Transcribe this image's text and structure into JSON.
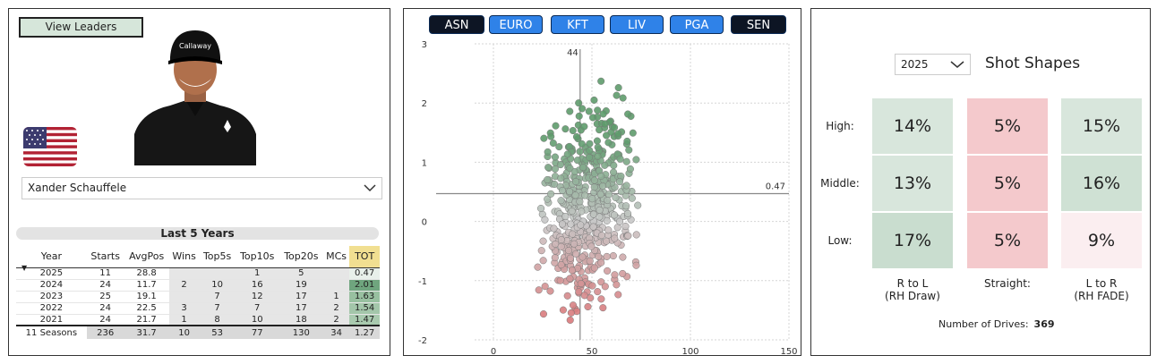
{
  "left": {
    "view_leaders": "View Leaders",
    "player": "Xander Schauffele",
    "section_title": "Last 5 Years",
    "columns": [
      "Year",
      "Starts",
      "AvgPos",
      "Wins",
      "Top5s",
      "Top10s",
      "Top20s",
      "MCs",
      "TOT"
    ],
    "rows": [
      [
        "2025",
        "11",
        "28.8",
        "",
        "",
        "1",
        "5",
        "",
        "0.47"
      ],
      [
        "2024",
        "24",
        "11.7",
        "2",
        "10",
        "16",
        "19",
        "",
        "2.01"
      ],
      [
        "2023",
        "25",
        "19.1",
        "",
        "7",
        "12",
        "17",
        "1",
        "1.63"
      ],
      [
        "2022",
        "24",
        "22.5",
        "3",
        "7",
        "7",
        "17",
        "2",
        "1.54"
      ],
      [
        "2021",
        "24",
        "21.7",
        "1",
        "8",
        "10",
        "18",
        "2",
        "1.47"
      ]
    ],
    "tot_colors": [
      "#e8f0ea",
      "#6fa57e",
      "#98c0a0",
      "#a3c6aa",
      "#a9caaf"
    ],
    "total_row": [
      "11 Seasons",
      "236",
      "31.7",
      "10",
      "53",
      "77",
      "130",
      "34",
      "1.27"
    ]
  },
  "middle": {
    "leagues": [
      {
        "label": "ASN",
        "style": "dark"
      },
      {
        "label": "EURO",
        "style": "blue"
      },
      {
        "label": "KFT",
        "style": "blue"
      },
      {
        "label": "LIV",
        "style": "blue"
      },
      {
        "label": "PGA",
        "style": "blue"
      },
      {
        "label": "SEN",
        "style": "dark"
      }
    ],
    "chart_data": {
      "type": "scatter",
      "title": "",
      "xlabel": "",
      "ylabel": "",
      "xlim": [
        -15,
        150
      ],
      "ylim": [
        -2,
        3
      ],
      "x_ticks": [
        "0",
        "50",
        "100",
        "150"
      ],
      "y_ticks": [
        "3",
        "2",
        "1",
        "0",
        "-1",
        "-2"
      ],
      "vertical_ref": {
        "value": 44,
        "label": "44"
      },
      "horizontal_ref": {
        "value": 0.47,
        "label": "0.47"
      },
      "grid": true,
      "point_color_high": "#5e9b6c",
      "point_color_mid": "#c8c8c8",
      "point_color_low": "#d9797b"
    }
  },
  "right": {
    "year": "2025",
    "title": "Shot Shapes",
    "row_labels": [
      "High:",
      "Middle:",
      "Low:"
    ],
    "col_labels": [
      [
        "R to L",
        "(RH Draw)"
      ],
      [
        "Straight:",
        ""
      ],
      [
        "L to R",
        "(RH FADE)"
      ]
    ],
    "cells": [
      [
        {
          "v": "14%",
          "c": "#d8e6dc"
        },
        {
          "v": "5%",
          "c": "#f4c9cc"
        },
        {
          "v": "15%",
          "c": "#d8e6dc"
        }
      ],
      [
        {
          "v": "13%",
          "c": "#d8e6dc"
        },
        {
          "v": "5%",
          "c": "#f4c9cc"
        },
        {
          "v": "16%",
          "c": "#cfe1d4"
        }
      ],
      [
        {
          "v": "17%",
          "c": "#c9ddcf"
        },
        {
          "v": "5%",
          "c": "#f4c9cc"
        },
        {
          "v": "9%",
          "c": "#fbeef0"
        }
      ]
    ],
    "drives_label": "Number of Drives:",
    "drives_value": "369"
  }
}
